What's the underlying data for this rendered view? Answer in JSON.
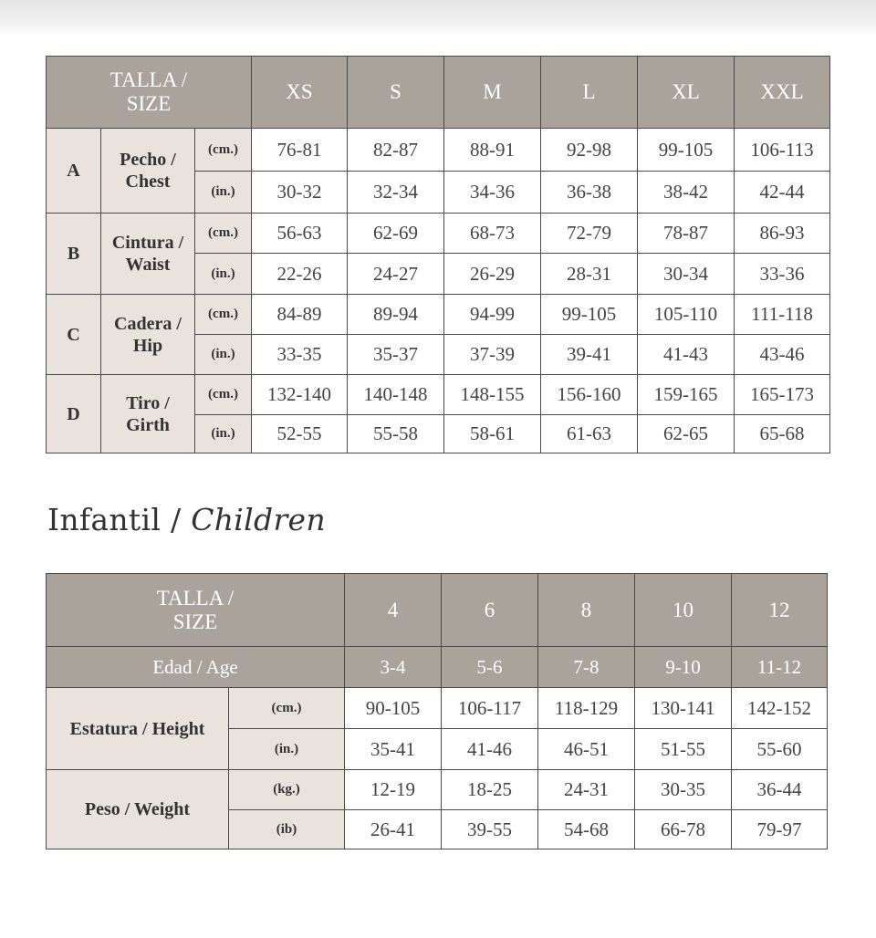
{
  "adult_table": {
    "header": {
      "size_label": "TALLA / SIZE",
      "sizes": [
        "XS",
        "S",
        "M",
        "L",
        "XL",
        "XXL"
      ]
    },
    "rows": [
      {
        "letter": "A",
        "measure": "Pecho / Chest",
        "units": [
          {
            "unit": "(cm.)",
            "values": [
              "76-81",
              "82-87",
              "88-91",
              "92-98",
              "99-105",
              "106-113"
            ]
          },
          {
            "unit": "(in.)",
            "values": [
              "30-32",
              "32-34",
              "34-36",
              "36-38",
              "38-42",
              "42-44"
            ]
          }
        ]
      },
      {
        "letter": "B",
        "measure": "Cintura / Waist",
        "units": [
          {
            "unit": "(cm.)",
            "values": [
              "56-63",
              "62-69",
              "68-73",
              "72-79",
              "78-87",
              "86-93"
            ]
          },
          {
            "unit": "(in.)",
            "values": [
              "22-26",
              "24-27",
              "26-29",
              "28-31",
              "30-34",
              "33-36"
            ]
          }
        ]
      },
      {
        "letter": "C",
        "measure": "Cadera / Hip",
        "units": [
          {
            "unit": "(cm.)",
            "values": [
              "84-89",
              "89-94",
              "94-99",
              "99-105",
              "105-110",
              "111-118"
            ]
          },
          {
            "unit": "(in.)",
            "values": [
              "33-35",
              "35-37",
              "37-39",
              "39-41",
              "41-43",
              "43-46"
            ]
          }
        ]
      },
      {
        "letter": "D",
        "measure": "Tiro / Girth",
        "units": [
          {
            "unit": "(cm.)",
            "values": [
              "132-140",
              "140-148",
              "148-155",
              "156-160",
              "159-165",
              "165-173"
            ]
          },
          {
            "unit": "(in.)",
            "values": [
              "52-55",
              "55-58",
              "58-61",
              "61-63",
              "62-65",
              "65-68"
            ]
          }
        ]
      }
    ]
  },
  "children_heading": {
    "text": "Infantil / ",
    "emphasis": "Children"
  },
  "children_table": {
    "header": {
      "size_label": "TALLA / SIZE",
      "sizes": [
        "4",
        "6",
        "8",
        "10",
        "12"
      ]
    },
    "age": {
      "label": "Edad / Age",
      "values": [
        "3-4",
        "5-6",
        "7-8",
        "9-10",
        "11-12"
      ]
    },
    "rows": [
      {
        "measure": "Estatura / Height",
        "units": [
          {
            "unit": "(cm.)",
            "values": [
              "90-105",
              "106-117",
              "118-129",
              "130-141",
              "142-152"
            ]
          },
          {
            "unit": "(in.)",
            "values": [
              "35-41",
              "41-46",
              "46-51",
              "51-55",
              "55-60"
            ]
          }
        ]
      },
      {
        "measure": "Peso / Weight",
        "units": [
          {
            "unit": "(kg.)",
            "values": [
              "12-19",
              "18-25",
              "24-31",
              "30-35",
              "36-44"
            ]
          },
          {
            "unit": "(ib)",
            "values": [
              "26-41",
              "39-55",
              "54-68",
              "66-78",
              "79-97"
            ]
          }
        ]
      }
    ]
  }
}
